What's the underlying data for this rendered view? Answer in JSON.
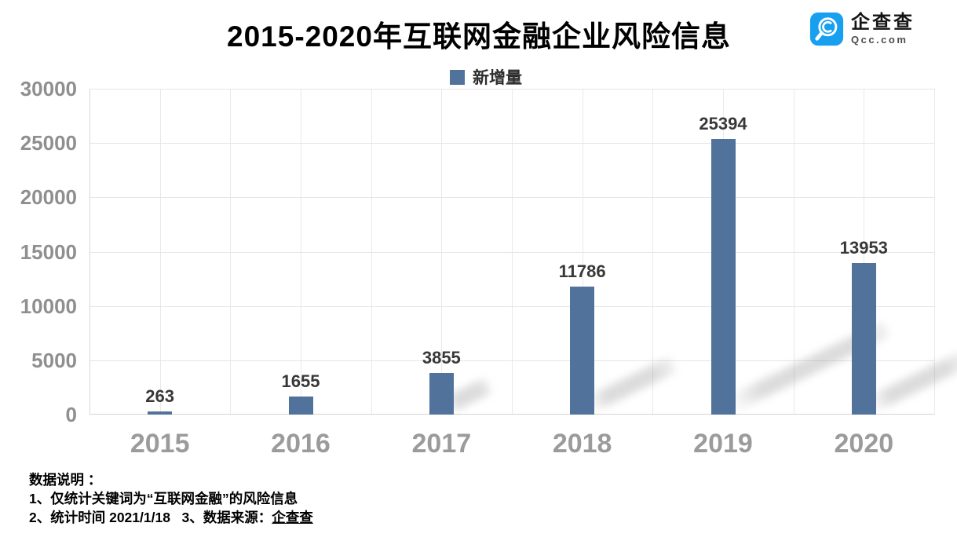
{
  "title": "2015-2020年互联网金融企业风险信息",
  "logo": {
    "name": "企查查",
    "domain": "Qcc.com",
    "brand_color": "#18A0F0",
    "icon": "qcc-magnifier-icon"
  },
  "legend": {
    "label": "新增量",
    "color": "#51739B"
  },
  "chart_data": {
    "type": "bar",
    "title": "2015-2020年互联网金融企业风险信息",
    "categories": [
      "2015",
      "2016",
      "2017",
      "2018",
      "2019",
      "2020"
    ],
    "series": [
      {
        "name": "新增量",
        "color": "#51739B",
        "values": [
          263,
          1655,
          3855,
          11786,
          25394,
          13953
        ]
      }
    ],
    "xlabel": "",
    "ylabel": "",
    "ylim": [
      0,
      30000
    ],
    "ytick_step": 5000,
    "yticks": [
      0,
      5000,
      10000,
      15000,
      20000,
      25000,
      30000
    ],
    "grid": true,
    "legend_position": "top",
    "colors": {
      "bar": "#51739B",
      "gridline": "#e6e6e6",
      "axis": "#d6d6d6",
      "tick_label": "#8f8f8f",
      "value_label": "#383838"
    }
  },
  "notes": {
    "heading": "数据说明 ：",
    "line1": "1、仅统计关键词为“互联网金融”的风险信息",
    "line2_prefix": "2、统计时间 2021/1/18   3、数据来源：",
    "line2_source": "企查查"
  }
}
